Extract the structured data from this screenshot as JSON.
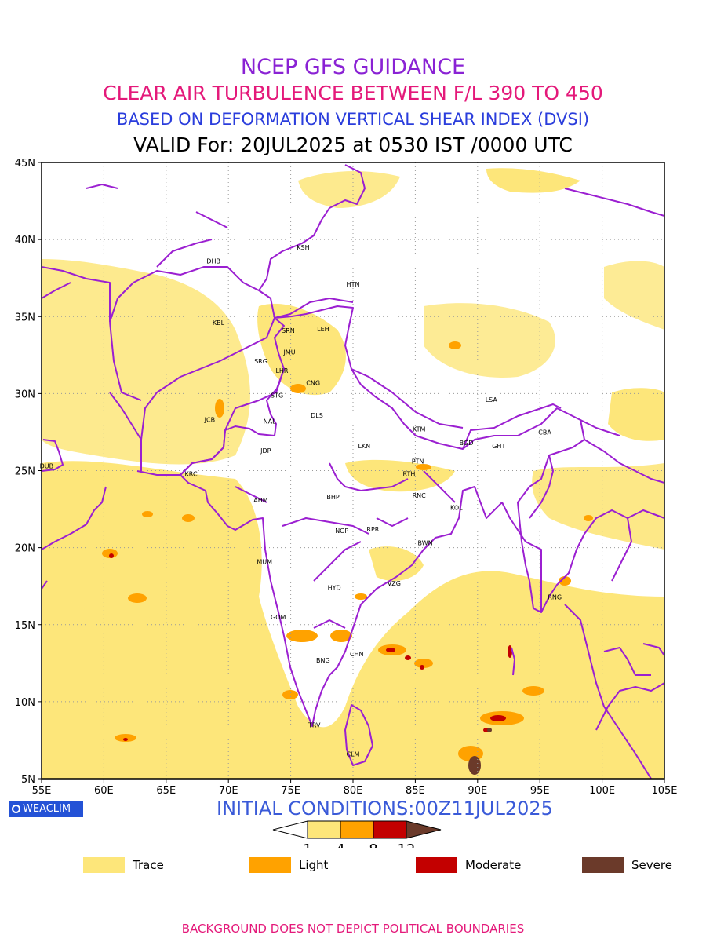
{
  "header": {
    "line1": "NCEP GFS GUIDANCE",
    "line2": "CLEAR AIR TURBULENCE BETWEEN F/L 390 TO 450",
    "line3": "BASED ON DEFORMATION VERTICAL SHEAR INDEX (DVSI)",
    "line4": "VALID For: 20JUL2025 at 0530 IST /0000 UTC"
  },
  "axes": {
    "lat_labels": [
      "45N",
      "40N",
      "35N",
      "30N",
      "25N",
      "20N",
      "15N",
      "10N",
      "5N"
    ],
    "lon_labels": [
      "55E",
      "60E",
      "65E",
      "70E",
      "75E",
      "80E",
      "85E",
      "90E",
      "95E",
      "100E",
      "105E"
    ],
    "lat_range": [
      5,
      45
    ],
    "lon_range": [
      55,
      105
    ],
    "grid": true
  },
  "cities": [
    {
      "code": "KSH",
      "lon": 76.0,
      "lat": 39.5
    },
    {
      "code": "DHB",
      "lon": 68.8,
      "lat": 38.6
    },
    {
      "code": "HTN",
      "lon": 80.0,
      "lat": 37.1
    },
    {
      "code": "KBL",
      "lon": 69.2,
      "lat": 34.6
    },
    {
      "code": "SRN",
      "lon": 74.8,
      "lat": 34.1
    },
    {
      "code": "LEH",
      "lon": 77.6,
      "lat": 34.2
    },
    {
      "code": "JMU",
      "lon": 74.9,
      "lat": 32.7
    },
    {
      "code": "SRG",
      "lon": 72.6,
      "lat": 32.1
    },
    {
      "code": "LHR",
      "lon": 74.3,
      "lat": 31.5
    },
    {
      "code": "CNG",
      "lon": 76.8,
      "lat": 30.7
    },
    {
      "code": "LSA",
      "lon": 91.1,
      "lat": 29.6
    },
    {
      "code": "STG",
      "lon": 73.9,
      "lat": 29.9
    },
    {
      "code": "DLS",
      "lon": 77.1,
      "lat": 28.6
    },
    {
      "code": "JCB",
      "lon": 68.5,
      "lat": 28.3
    },
    {
      "code": "NAL",
      "lon": 73.3,
      "lat": 28.2
    },
    {
      "code": "CBA",
      "lon": 95.4,
      "lat": 27.5
    },
    {
      "code": "KTM",
      "lon": 85.3,
      "lat": 27.7
    },
    {
      "code": "BGD",
      "lon": 89.1,
      "lat": 26.8
    },
    {
      "code": "JDP",
      "lon": 73.0,
      "lat": 26.3
    },
    {
      "code": "LKN",
      "lon": 80.9,
      "lat": 26.6
    },
    {
      "code": "GHT",
      "lon": 91.7,
      "lat": 26.6
    },
    {
      "code": "PTN",
      "lon": 85.2,
      "lat": 25.6
    },
    {
      "code": "DUB",
      "lon": 55.4,
      "lat": 25.3
    },
    {
      "code": "KRC",
      "lon": 67.0,
      "lat": 24.8
    },
    {
      "code": "RTH",
      "lon": 84.5,
      "lat": 24.8
    },
    {
      "code": "AHM",
      "lon": 72.6,
      "lat": 23.1
    },
    {
      "code": "BHP",
      "lon": 78.4,
      "lat": 23.3
    },
    {
      "code": "RNC",
      "lon": 85.3,
      "lat": 23.4
    },
    {
      "code": "KOL",
      "lon": 88.3,
      "lat": 22.6
    },
    {
      "code": "NGP",
      "lon": 79.1,
      "lat": 21.1
    },
    {
      "code": "RPR",
      "lon": 81.6,
      "lat": 21.2
    },
    {
      "code": "BWN",
      "lon": 85.8,
      "lat": 20.3
    },
    {
      "code": "MUM",
      "lon": 72.9,
      "lat": 19.1
    },
    {
      "code": "HYD",
      "lon": 78.5,
      "lat": 17.4
    },
    {
      "code": "VZG",
      "lon": 83.3,
      "lat": 17.7
    },
    {
      "code": "RNG",
      "lon": 96.2,
      "lat": 16.8
    },
    {
      "code": "GOM",
      "lon": 74.0,
      "lat": 15.5
    },
    {
      "code": "CHN",
      "lon": 80.3,
      "lat": 13.1
    },
    {
      "code": "BNG",
      "lon": 77.6,
      "lat": 12.7
    },
    {
      "code": "TRV",
      "lon": 76.9,
      "lat": 8.5
    },
    {
      "code": "CLM",
      "lon": 80.0,
      "lat": 6.6
    }
  ],
  "logo": {
    "text": "WEACLIM",
    "icon": "circle-logo-icon"
  },
  "initial_conditions": "INITIAL CONDITIONS:00Z11JUL2025",
  "colorbar": {
    "ticks": [
      "1",
      "4",
      "8",
      "12"
    ],
    "colors": [
      "#ffffff",
      "#fde67a",
      "#ffa200",
      "#c30000",
      "#6b3a2a"
    ]
  },
  "legend": [
    {
      "label": "Trace",
      "color": "#fde67a"
    },
    {
      "label": "Light",
      "color": "#ffa200"
    },
    {
      "label": "Moderate",
      "color": "#c30000"
    },
    {
      "label": "Severe",
      "color": "#6b3a2a"
    }
  ],
  "footer": "BACKGROUND DOES NOT DEPICT POLITICAL BOUNDARIES",
  "colors": {
    "boundary": "#9b1fd1",
    "trace": "#fde67a",
    "light": "#ffa200",
    "moderate": "#c30000",
    "severe": "#6b3a2a"
  }
}
